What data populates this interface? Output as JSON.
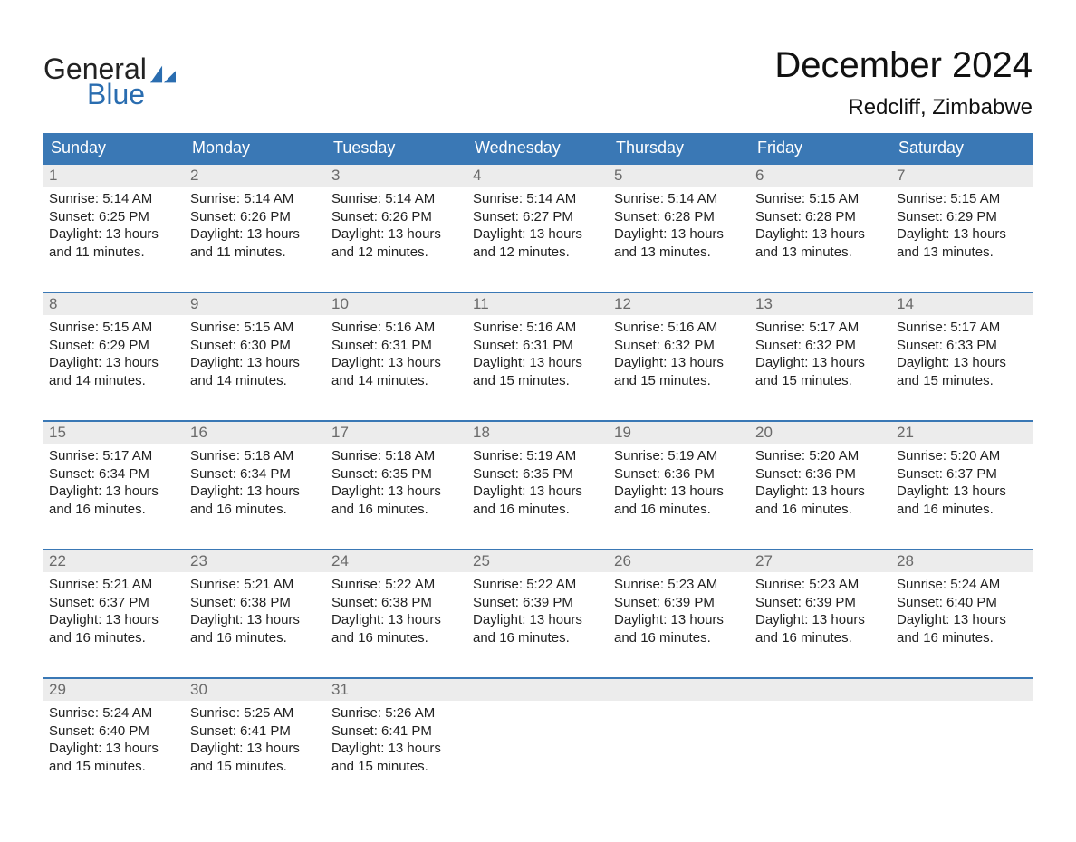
{
  "brand": {
    "word1": "General",
    "word2": "Blue"
  },
  "title": "December 2024",
  "location": "Redcliff, Zimbabwe",
  "colors": {
    "header_bg": "#3a78b5",
    "header_text": "#ffffff",
    "daynum_bg": "#ececec",
    "daynum_text": "#6a6a6a",
    "body_text": "#222222",
    "rule": "#3a78b5",
    "brand_blue": "#2a6db0"
  },
  "daysOfWeek": [
    "Sunday",
    "Monday",
    "Tuesday",
    "Wednesday",
    "Thursday",
    "Friday",
    "Saturday"
  ],
  "labels": {
    "sunrise": "Sunrise:",
    "sunset": "Sunset:",
    "daylight": "Daylight:"
  },
  "weeks": [
    [
      {
        "n": "1",
        "sr": "5:14 AM",
        "ss": "6:25 PM",
        "dl": "13 hours and 11 minutes."
      },
      {
        "n": "2",
        "sr": "5:14 AM",
        "ss": "6:26 PM",
        "dl": "13 hours and 11 minutes."
      },
      {
        "n": "3",
        "sr": "5:14 AM",
        "ss": "6:26 PM",
        "dl": "13 hours and 12 minutes."
      },
      {
        "n": "4",
        "sr": "5:14 AM",
        "ss": "6:27 PM",
        "dl": "13 hours and 12 minutes."
      },
      {
        "n": "5",
        "sr": "5:14 AM",
        "ss": "6:28 PM",
        "dl": "13 hours and 13 minutes."
      },
      {
        "n": "6",
        "sr": "5:15 AM",
        "ss": "6:28 PM",
        "dl": "13 hours and 13 minutes."
      },
      {
        "n": "7",
        "sr": "5:15 AM",
        "ss": "6:29 PM",
        "dl": "13 hours and 13 minutes."
      }
    ],
    [
      {
        "n": "8",
        "sr": "5:15 AM",
        "ss": "6:29 PM",
        "dl": "13 hours and 14 minutes."
      },
      {
        "n": "9",
        "sr": "5:15 AM",
        "ss": "6:30 PM",
        "dl": "13 hours and 14 minutes."
      },
      {
        "n": "10",
        "sr": "5:16 AM",
        "ss": "6:31 PM",
        "dl": "13 hours and 14 minutes."
      },
      {
        "n": "11",
        "sr": "5:16 AM",
        "ss": "6:31 PM",
        "dl": "13 hours and 15 minutes."
      },
      {
        "n": "12",
        "sr": "5:16 AM",
        "ss": "6:32 PM",
        "dl": "13 hours and 15 minutes."
      },
      {
        "n": "13",
        "sr": "5:17 AM",
        "ss": "6:32 PM",
        "dl": "13 hours and 15 minutes."
      },
      {
        "n": "14",
        "sr": "5:17 AM",
        "ss": "6:33 PM",
        "dl": "13 hours and 15 minutes."
      }
    ],
    [
      {
        "n": "15",
        "sr": "5:17 AM",
        "ss": "6:34 PM",
        "dl": "13 hours and 16 minutes."
      },
      {
        "n": "16",
        "sr": "5:18 AM",
        "ss": "6:34 PM",
        "dl": "13 hours and 16 minutes."
      },
      {
        "n": "17",
        "sr": "5:18 AM",
        "ss": "6:35 PM",
        "dl": "13 hours and 16 minutes."
      },
      {
        "n": "18",
        "sr": "5:19 AM",
        "ss": "6:35 PM",
        "dl": "13 hours and 16 minutes."
      },
      {
        "n": "19",
        "sr": "5:19 AM",
        "ss": "6:36 PM",
        "dl": "13 hours and 16 minutes."
      },
      {
        "n": "20",
        "sr": "5:20 AM",
        "ss": "6:36 PM",
        "dl": "13 hours and 16 minutes."
      },
      {
        "n": "21",
        "sr": "5:20 AM",
        "ss": "6:37 PM",
        "dl": "13 hours and 16 minutes."
      }
    ],
    [
      {
        "n": "22",
        "sr": "5:21 AM",
        "ss": "6:37 PM",
        "dl": "13 hours and 16 minutes."
      },
      {
        "n": "23",
        "sr": "5:21 AM",
        "ss": "6:38 PM",
        "dl": "13 hours and 16 minutes."
      },
      {
        "n": "24",
        "sr": "5:22 AM",
        "ss": "6:38 PM",
        "dl": "13 hours and 16 minutes."
      },
      {
        "n": "25",
        "sr": "5:22 AM",
        "ss": "6:39 PM",
        "dl": "13 hours and 16 minutes."
      },
      {
        "n": "26",
        "sr": "5:23 AM",
        "ss": "6:39 PM",
        "dl": "13 hours and 16 minutes."
      },
      {
        "n": "27",
        "sr": "5:23 AM",
        "ss": "6:39 PM",
        "dl": "13 hours and 16 minutes."
      },
      {
        "n": "28",
        "sr": "5:24 AM",
        "ss": "6:40 PM",
        "dl": "13 hours and 16 minutes."
      }
    ],
    [
      {
        "n": "29",
        "sr": "5:24 AM",
        "ss": "6:40 PM",
        "dl": "13 hours and 15 minutes."
      },
      {
        "n": "30",
        "sr": "5:25 AM",
        "ss": "6:41 PM",
        "dl": "13 hours and 15 minutes."
      },
      {
        "n": "31",
        "sr": "5:26 AM",
        "ss": "6:41 PM",
        "dl": "13 hours and 15 minutes."
      },
      null,
      null,
      null,
      null
    ]
  ]
}
